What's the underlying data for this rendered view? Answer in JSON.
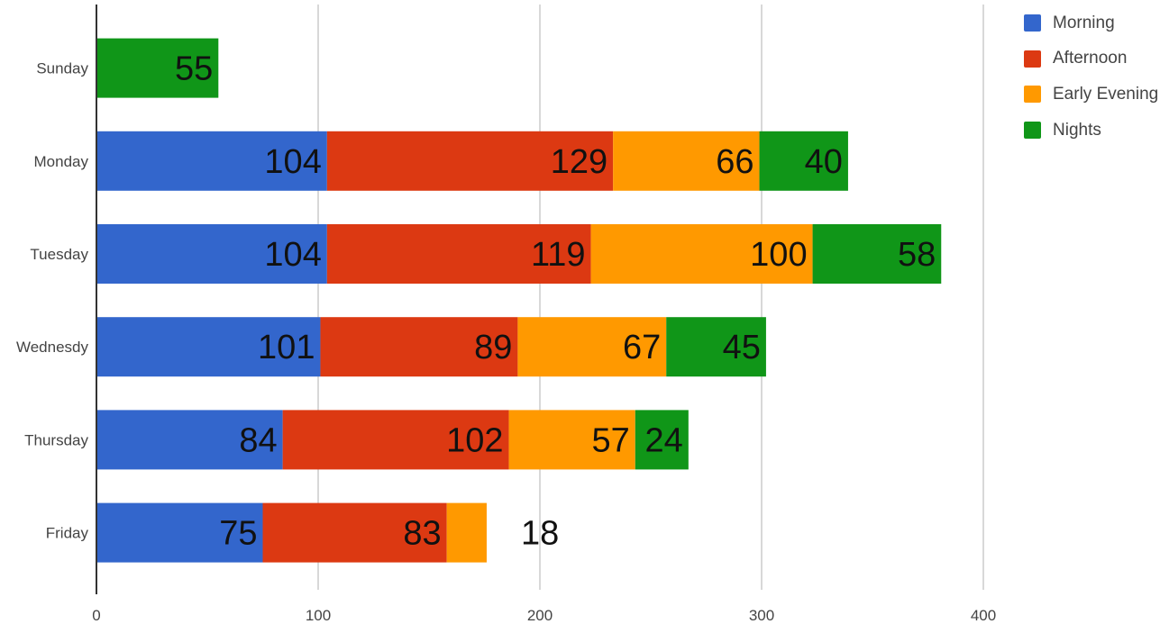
{
  "chart_data": {
    "type": "bar",
    "orientation": "horizontal",
    "stacked": true,
    "categories": [
      "Sunday",
      "Monday",
      "Tuesday",
      "Wednesdy",
      "Thursday",
      "Friday"
    ],
    "series": [
      {
        "name": "Morning",
        "color": "#3366cc",
        "values": [
          null,
          104,
          104,
          101,
          84,
          75
        ]
      },
      {
        "name": "Afternoon",
        "color": "#dc3912",
        "values": [
          null,
          129,
          119,
          89,
          102,
          83
        ]
      },
      {
        "name": "Early Evening",
        "color": "#ff9900",
        "values": [
          null,
          66,
          100,
          67,
          57,
          18
        ]
      },
      {
        "name": "Nights",
        "color": "#109618",
        "values": [
          55,
          40,
          58,
          45,
          24,
          null
        ]
      }
    ],
    "x_ticks": [
      "0",
      "100",
      "200",
      "300",
      "400"
    ],
    "xlim": [
      0,
      400
    ],
    "grid": true,
    "legend_position": "top-right",
    "data_labels": true
  }
}
